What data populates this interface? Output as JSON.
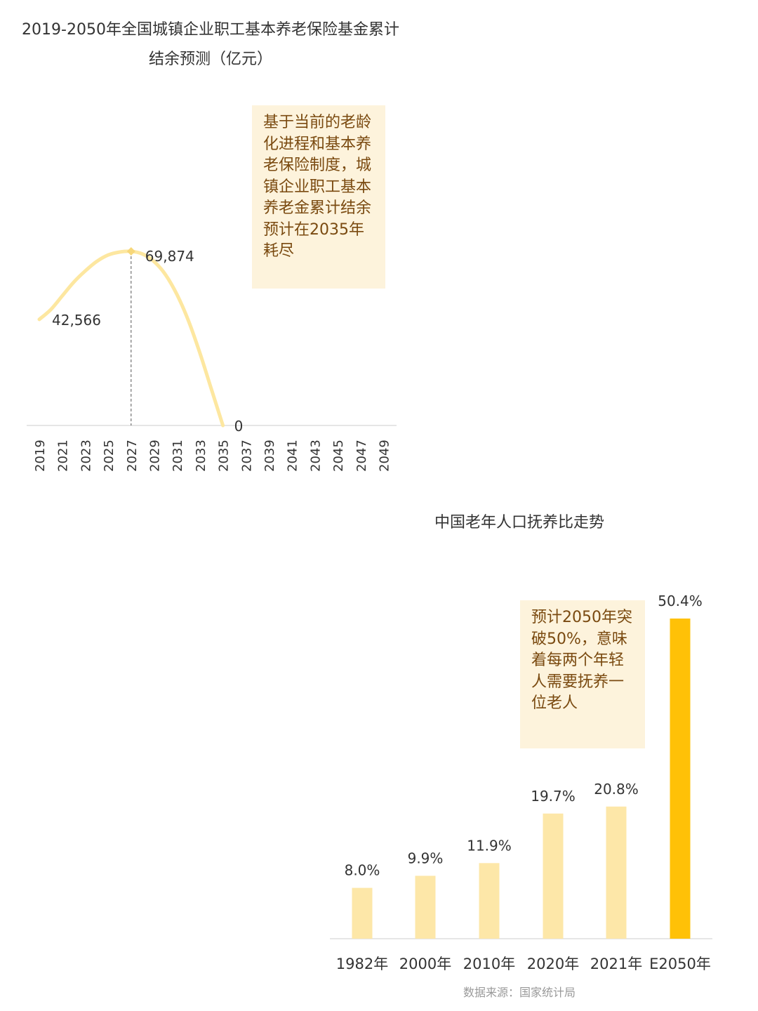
{
  "chart_data": [
    {
      "type": "line",
      "title": "2019-2050年全国城镇企业职工基本养老保险基金累计结余预测（亿元）",
      "x": [
        2019,
        2021,
        2023,
        2025,
        2027,
        2029,
        2031,
        2033,
        2035,
        2037,
        2039,
        2041,
        2043,
        2045,
        2047,
        2049
      ],
      "series": [
        {
          "x": [
            2019,
            2020,
            2021,
            2022,
            2023,
            2024,
            2025,
            2026,
            2027,
            2028,
            2029,
            2030,
            2031,
            2032,
            2033,
            2034,
            2035
          ],
          "values": [
            42566,
            46500,
            52000,
            57500,
            62000,
            65800,
            68400,
            69600,
            69874,
            68800,
            65800,
            60500,
            52500,
            42000,
            29000,
            14500,
            0
          ]
        }
      ],
      "data_labels": [
        {
          "x": 2019,
          "text": "42,566"
        },
        {
          "x": 2027,
          "text": "69,874"
        },
        {
          "x": 2035,
          "text": "0"
        }
      ],
      "annotation": "基于当前的老龄化进程和基本养老保险制度，城镇企业职工基本养老金累计结余预计在2035年耗尽",
      "color": "#fde7a0",
      "peak_marker_color": "#f7d77a"
    },
    {
      "type": "bar",
      "title": "中国老年人口抚养比走势",
      "categories": [
        "1982年",
        "2000年",
        "2010年",
        "2020年",
        "2021年",
        "E2050年"
      ],
      "values": [
        8.0,
        9.9,
        11.9,
        19.7,
        20.8,
        50.4
      ],
      "value_labels": [
        "8.0%",
        "9.9%",
        "11.9%",
        "19.7%",
        "20.8%",
        "50.4%"
      ],
      "annotation": "预计2050年突破50%，意味着每两个年轻人需要抚养一位老人",
      "bar_color": "#fde7a8",
      "highlight_color": "#ffc107",
      "source": "数据来源：国家统计局"
    }
  ]
}
